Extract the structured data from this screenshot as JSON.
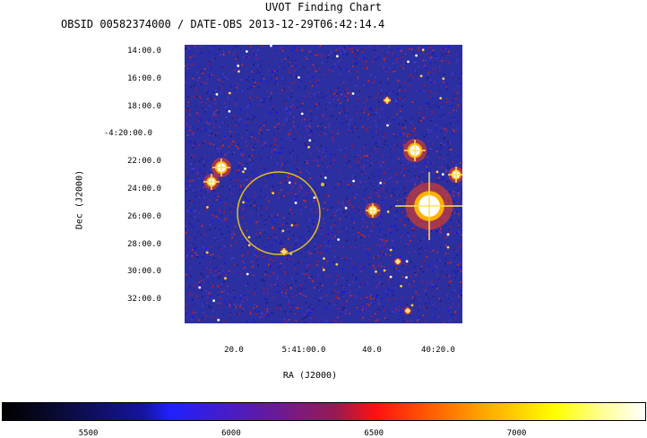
{
  "chart_data": {
    "type": "heatmap",
    "title": "UVOT Finding Chart",
    "subtitle": "OBSID 00582374000 / DATE-OBS 2013-12-29T06:42:14.4",
    "xlabel": "RA (J2000)",
    "ylabel": "Dec (J2000)",
    "x_ticks": [
      "20.0",
      "5:41:00.0",
      "40.0",
      "40:20.0"
    ],
    "y_ticks": [
      "14:00.0",
      "16:00.0",
      "18:00.0",
      "-4:20:00.0",
      "22:00.0",
      "24:00.0",
      "26:00.0",
      "28:00.0",
      "30:00.0",
      "32:00.0"
    ],
    "colorbar": {
      "range": [
        5200,
        7450
      ],
      "ticks": [
        5500,
        6000,
        6500,
        7000
      ]
    },
    "annotations": [
      "source circle (yellow)",
      "bright stars"
    ]
  }
}
